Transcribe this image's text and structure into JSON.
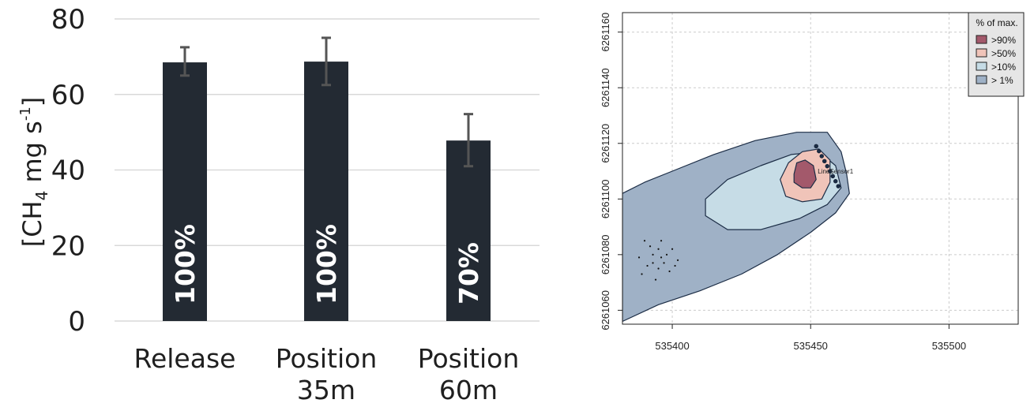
{
  "chart_data": [
    {
      "type": "bar",
      "ylabel_main": "[CH",
      "ylabel_sub": "4",
      "ylabel_mid": " mg s",
      "ylabel_sup": "-1",
      "ylabel_end": "]",
      "ylim": [
        0,
        80
      ],
      "yticks": [
        "0",
        "20",
        "40",
        "60",
        "80"
      ],
      "grid": true,
      "categories": [
        {
          "line1": "Release",
          "line2": ""
        },
        {
          "line1": "Position",
          "line2": "35m"
        },
        {
          "line1": "Position",
          "line2": "60m"
        }
      ],
      "values": [
        68.5,
        68.7,
        47.8
      ],
      "error_low": [
        65.0,
        62.5,
        41.0
      ],
      "error_high": [
        72.5,
        75.0,
        54.8
      ],
      "bar_labels": [
        "100%",
        "100%",
        "70%"
      ],
      "bar_color": "#232a33",
      "error_color": "#555555"
    },
    {
      "type": "contour",
      "xlim": [
        535382,
        535525
      ],
      "ylim": [
        6261055,
        6261167
      ],
      "xticks": [
        "535400",
        "535450",
        "535500"
      ],
      "yticks": [
        "6261060",
        "6261080",
        "6261100",
        "6261120",
        "6261140",
        "6261160"
      ],
      "ytick_labels": [
        "6261060",
        "6261080",
        "6261100",
        "6261120",
        "6261140",
        "6261160"
      ],
      "grid": true,
      "legend": {
        "title": "% of max.",
        "position": "top-right",
        "entries": [
          {
            "label": ">90%",
            "color": "#a3596b"
          },
          {
            "label": ">50%",
            "color": "#f0c4b9"
          },
          {
            "label": ">10%",
            "color": "#c6dce6"
          },
          {
            "label": "> 1%",
            "color": "#9fb1c6"
          }
        ]
      },
      "sensor_label": "LineSensor1",
      "line_sensor_points": [
        [
          535452,
          6261119
        ],
        [
          535453,
          6261117.2
        ],
        [
          535454,
          6261115.4
        ],
        [
          535455,
          6261113.6
        ],
        [
          535456,
          6261111.8
        ],
        [
          535457,
          6261110
        ],
        [
          535458,
          6261108.2
        ],
        [
          535459,
          6261106.4
        ],
        [
          535460,
          6261104.6
        ]
      ],
      "source_points": [
        [
          535390,
          6261085
        ],
        [
          535392,
          6261083
        ],
        [
          535395,
          6261082
        ],
        [
          535393,
          6261080
        ],
        [
          535396,
          6261079
        ],
        [
          535398,
          6261080
        ],
        [
          535397,
          6261077
        ],
        [
          535395,
          6261075
        ],
        [
          535399,
          6261074
        ],
        [
          535391,
          6261076
        ],
        [
          535394,
          6261071
        ],
        [
          535400,
          6261082
        ],
        [
          535402,
          6261078
        ],
        [
          535396,
          6261085
        ],
        [
          535389,
          6261073
        ],
        [
          535401,
          6261076
        ],
        [
          535388,
          6261079
        ],
        [
          535393,
          6261077
        ]
      ],
      "contours": [
        {
          "level": "> 1%",
          "color": "#9fb1c6",
          "points": [
            [
              535382,
              6261102
            ],
            [
              535390,
              6261106
            ],
            [
              535400,
              6261110
            ],
            [
              535415,
              6261116
            ],
            [
              535430,
              6261121
            ],
            [
              535445,
              6261124
            ],
            [
              535456,
              6261124
            ],
            [
              535461,
              6261117
            ],
            [
              535463,
              6261109
            ],
            [
              535464,
              6261102
            ],
            [
              535459,
              6261095
            ],
            [
              535450,
              6261088
            ],
            [
              535438,
              6261080
            ],
            [
              535425,
              6261073
            ],
            [
              535410,
              6261067
            ],
            [
              535395,
              6261062
            ],
            [
              535382,
              6261056
            ]
          ]
        },
        {
          "level": ">10%",
          "color": "#c6dce6",
          "points": [
            [
              535412,
              6261100
            ],
            [
              535420,
              6261107
            ],
            [
              535432,
              6261112
            ],
            [
              535443,
              6261116
            ],
            [
              535453,
              6261117
            ],
            [
              535459,
              6261112
            ],
            [
              535461,
              6261104
            ],
            [
              535456,
              6261098
            ],
            [
              535446,
              6261093
            ],
            [
              535432,
              6261089
            ],
            [
              535420,
              6261089
            ],
            [
              535412,
              6261094
            ]
          ]
        },
        {
          "level": ">50%",
          "color": "#f0c4b9",
          "points": [
            [
              535439,
              6261107
            ],
            [
              535442,
              6261113
            ],
            [
              535447,
              6261117
            ],
            [
              535453,
              6261118
            ],
            [
              535457,
              6261114
            ],
            [
              535457,
              6261106
            ],
            [
              535454,
              6261100
            ],
            [
              535447,
              6261099
            ],
            [
              535441,
              6261101
            ]
          ]
        },
        {
          "level": ">90%",
          "color": "#a3596b",
          "points": [
            [
              535444,
              6261109
            ],
            [
              535445,
              6261113
            ],
            [
              535448,
              6261114
            ],
            [
              535451,
              6261112
            ],
            [
              535452,
              6261107
            ],
            [
              535450,
              6261104
            ],
            [
              535447,
              6261104
            ],
            [
              535444,
              6261106
            ]
          ]
        }
      ]
    }
  ]
}
